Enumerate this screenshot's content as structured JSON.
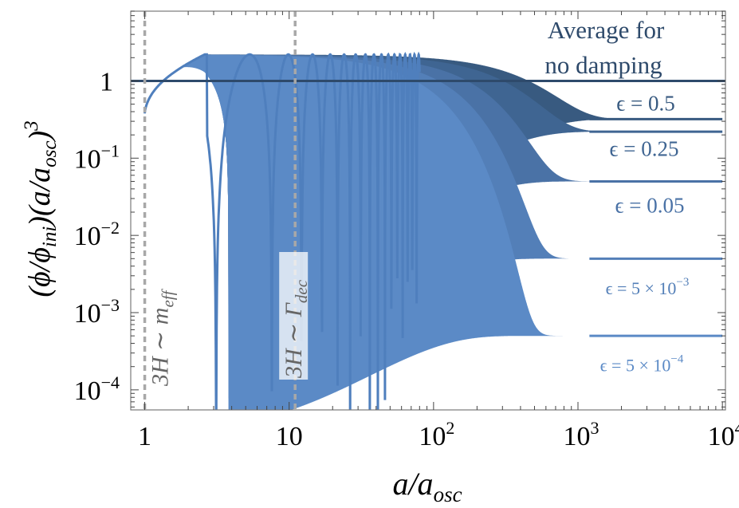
{
  "chart_data": {
    "type": "line",
    "title": "",
    "xscale": "log",
    "yscale": "log",
    "xlim": [
      0.8,
      10500
    ],
    "ylim": [
      5.5e-05,
      8
    ],
    "x_ticks": [
      {
        "value": 1,
        "label": "1"
      },
      {
        "value": 10,
        "label": "10"
      },
      {
        "value": 100,
        "base": "10",
        "exp": "2"
      },
      {
        "value": 1000,
        "base": "10",
        "exp": "3"
      },
      {
        "value": 10000,
        "base": "10",
        "exp": "4"
      }
    ],
    "y_ticks": [
      {
        "value": 1,
        "label": "1"
      },
      {
        "value": 0.1,
        "base": "10",
        "exp": "−1"
      },
      {
        "value": 0.01,
        "base": "10",
        "exp": "−2"
      },
      {
        "value": 0.001,
        "base": "10",
        "exp": "−3"
      },
      {
        "value": 0.0001,
        "base": "10",
        "exp": "−4"
      }
    ],
    "xlabel": {
      "main": "a/a",
      "sub": "osc"
    },
    "ylabel": {
      "p1": "(ϕ/ϕ",
      "sub": "ini",
      "p2": ")(a/a",
      "sub2": "osc",
      "p3": ")",
      "sup": "3"
    },
    "reference_line": {
      "y": 1,
      "label_line1": "Average for",
      "label_line2": "no damping",
      "color": "#2e4a6b"
    },
    "vlines": [
      {
        "x": 1,
        "label_main": "3H ∼ m",
        "label_sub": "eff"
      },
      {
        "x": 11,
        "label_main": "3H ∼ Γ",
        "label_sub": "dec"
      }
    ],
    "series": [
      {
        "name": "ϵ = 0.5",
        "label_text": "ϵ = 0.5",
        "final_value": 0.32,
        "peak_amplitude": 2.2,
        "damping_scale": 450,
        "color": "#385a80"
      },
      {
        "name": "ϵ = 0.25",
        "label_text": "ϵ = 0.25",
        "final_value": 0.22,
        "peak_amplitude": 2.2,
        "damping_scale": 320,
        "color": "#3f6592"
      },
      {
        "name": "ϵ = 0.05",
        "label_text": "ϵ = 0.05",
        "final_value": 0.05,
        "peak_amplitude": 2.2,
        "damping_scale": 200,
        "color": "#4a72a6"
      },
      {
        "name": "ϵ = 5 × 10^-3",
        "label_text": "ϵ = 5 × 10",
        "label_exp": "−3",
        "final_value": 0.005,
        "peak_amplitude": 2.2,
        "damping_scale": 130,
        "color": "#537fb8"
      },
      {
        "name": "ϵ = 5 × 10^-4",
        "label_text": "ϵ = 5 × 10",
        "label_exp": "−4",
        "final_value": 0.0005,
        "peak_amplitude": 2.2,
        "damping_scale": 90,
        "color": "#5b8ac6"
      }
    ],
    "grid": false
  }
}
